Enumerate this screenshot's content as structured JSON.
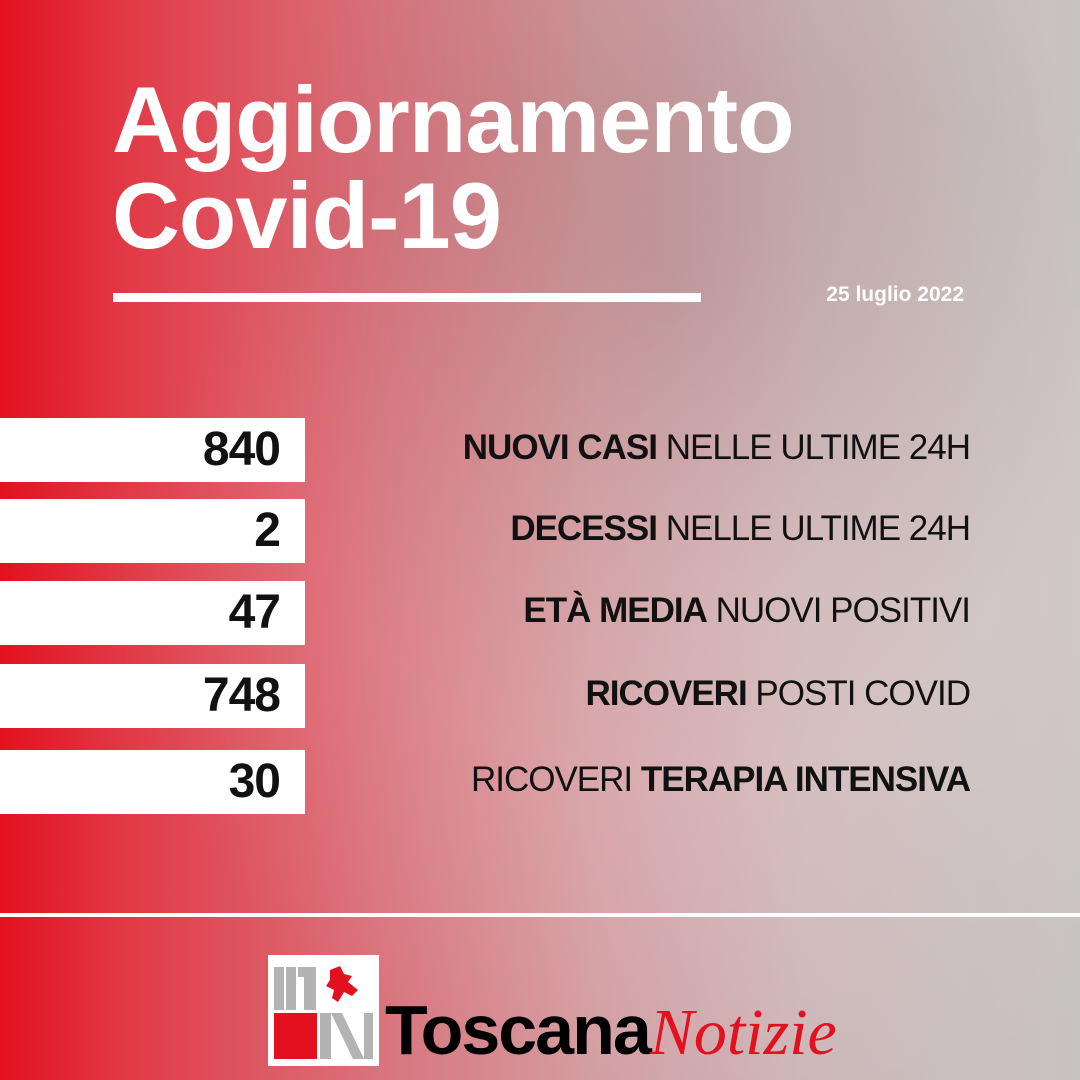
{
  "header": {
    "title_line1": "Aggiornamento",
    "title_line2": "Covid-19",
    "date": "25 luglio 2022"
  },
  "stats": [
    {
      "value": "840",
      "bold": "NUOVI CASI",
      "light": " NELLE ULTIME 24H",
      "bold_first": true
    },
    {
      "value": "2",
      "bold": "DECESSI",
      "light": " NELLE ULTIME 24H",
      "bold_first": true
    },
    {
      "value": "47",
      "bold": "ETÀ MEDIA",
      "light": " NUOVI POSITIVI",
      "bold_first": true
    },
    {
      "value": "748",
      "bold": "RICOVERI",
      "light": " POSTI COVID",
      "bold_first": true
    },
    {
      "value": "30",
      "light": "RICOVERI ",
      "bold": "TERAPIA INTENSIVA",
      "bold_first": false
    }
  ],
  "footer": {
    "brand_bold": "Toscana",
    "brand_italic": "Notizie",
    "logo_color": "#e3101f"
  },
  "colors": {
    "accent": "#e3111f",
    "gray": "#c7c3c3"
  }
}
